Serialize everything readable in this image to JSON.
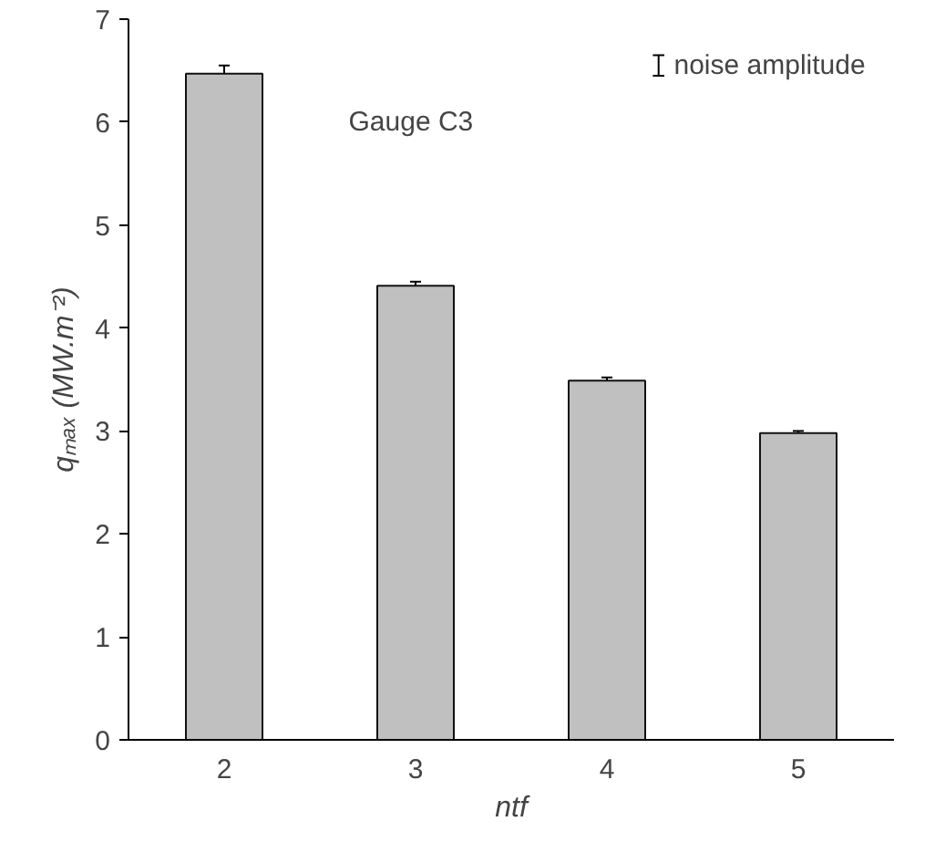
{
  "chart_data": {
    "type": "bar",
    "categories": [
      "2",
      "3",
      "4",
      "5"
    ],
    "values": [
      6.47,
      4.41,
      3.49,
      2.98
    ],
    "errors": [
      0.08,
      0.04,
      0.03,
      0.02
    ],
    "color": "#c0c0c0",
    "xlabel": "ntf",
    "ylabel": "qₘₐₓ (MW.m⁻²)",
    "ylim": [
      0,
      7
    ],
    "yticks": [
      0,
      1,
      2,
      3,
      4,
      5,
      6,
      7
    ],
    "grid": false,
    "annotations": [
      "Gauge C3",
      "noise amplitude"
    ]
  }
}
